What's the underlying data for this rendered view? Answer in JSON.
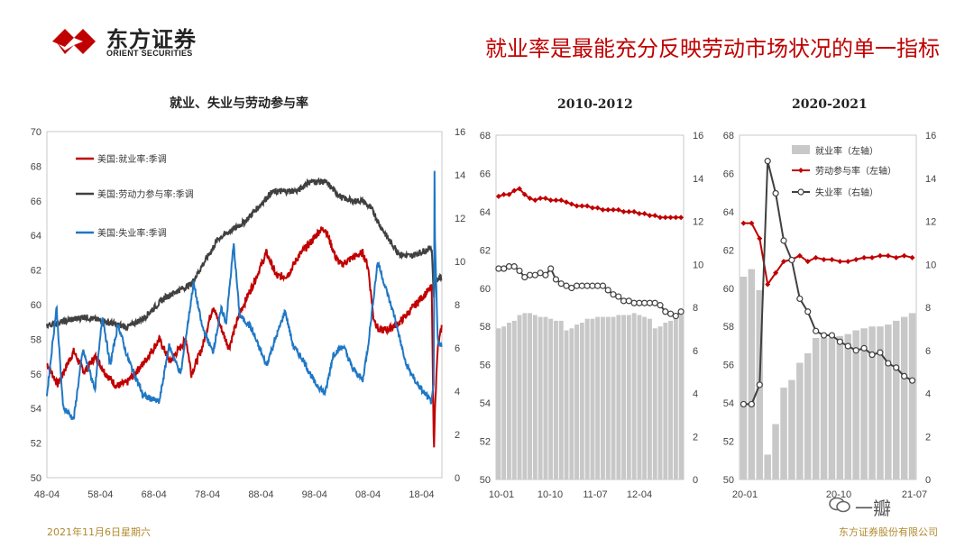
{
  "header": {
    "logo_cn": "东方证券",
    "logo_en": "ORIENT SECURITIES",
    "title": "就业率是最能充分反映劳动市场状况的单一指标"
  },
  "footer": {
    "date": "2021年11月6日星期六",
    "company": "东方证券股份有限公司",
    "watermark": "一瓣"
  },
  "colors": {
    "red": "#c00000",
    "gray": "#404040",
    "blue": "#1f77c4",
    "bar": "#c8c8c8",
    "title_red": "#c00000"
  },
  "chart_data": [
    {
      "type": "line",
      "title": "就业、失业与劳动参与率",
      "x_ticks": [
        "48-04",
        "58-04",
        "68-04",
        "78-04",
        "88-04",
        "98-04",
        "08-04",
        "18-04"
      ],
      "x_range": [
        1948.0,
        2021.8
      ],
      "y_left": {
        "ticks": [
          "50",
          "52",
          "54",
          "56",
          "58",
          "60",
          "62",
          "64",
          "66",
          "68",
          "70"
        ],
        "min": 50,
        "max": 70
      },
      "y_right": {
        "ticks": [
          "0",
          "2",
          "4",
          "6",
          "8",
          "10",
          "12",
          "14",
          "16"
        ],
        "min": 0,
        "max": 16
      },
      "series": [
        {
          "name": "美国:就业率:季调",
          "axis": "left",
          "color": "red",
          "x": [
            1948,
            1950,
            1953,
            1955,
            1957,
            1959,
            1961,
            1963,
            1966,
            1969,
            1971,
            1974,
            1975,
            1977,
            1979,
            1982,
            1984,
            1987,
            1989,
            1991,
            1993,
            1995,
            1997,
            1999,
            2000,
            2002,
            2003,
            2005,
            2007,
            2008,
            2009,
            2010,
            2012,
            2014,
            2016,
            2018,
            2019.9,
            2020.3,
            2020.5,
            2021.0,
            2021.8
          ],
          "y": [
            56.6,
            55.4,
            57.3,
            56.1,
            57.0,
            56.0,
            55.3,
            55.5,
            56.6,
            58.0,
            56.7,
            58.0,
            56.0,
            57.5,
            59.9,
            57.5,
            59.5,
            61.5,
            63.0,
            61.6,
            61.7,
            62.8,
            63.5,
            64.3,
            64.4,
            62.7,
            62.3,
            62.7,
            63.0,
            62.2,
            59.3,
            58.5,
            58.6,
            59.0,
            59.7,
            60.4,
            61.0,
            51.3,
            54.0,
            57.4,
            58.8
          ]
        },
        {
          "name": "美国:劳动力参与率:季调",
          "axis": "left",
          "color": "gray",
          "x": [
            1948,
            1955,
            1963,
            1966,
            1970,
            1975,
            1980,
            1985,
            1990,
            1995,
            1997,
            2000,
            2003,
            2005,
            2007,
            2009,
            2010,
            2012,
            2014,
            2016,
            2019.9,
            2020.3,
            2020.5,
            2021.8
          ],
          "y": [
            58.8,
            59.3,
            58.7,
            59.2,
            60.4,
            61.2,
            63.8,
            64.8,
            66.5,
            66.6,
            67.1,
            67.1,
            66.2,
            66.0,
            66.0,
            65.4,
            64.7,
            63.7,
            62.9,
            62.8,
            63.3,
            60.2,
            61.4,
            61.6
          ]
        },
        {
          "name": "美国:失业率:季调",
          "axis": "right",
          "color": "blue",
          "x": [
            1948,
            1949.8,
            1951,
            1953,
            1954.7,
            1957,
            1958.4,
            1959.8,
            1961.3,
            1963,
            1966,
            1969,
            1970.8,
            1973,
            1975.4,
            1977,
            1979,
            1980.6,
            1981.5,
            1982.9,
            1984,
            1986,
            1989,
            1992.5,
            1994,
            1996,
            1998,
            2000,
            2001.5,
            2003.4,
            2005,
            2007,
            2008,
            2009.8,
            2011,
            2013,
            2015,
            2017,
            2019.8,
            2020.3,
            2020.4,
            2020.5,
            2021.0,
            2021.8
          ],
          "y": [
            3.8,
            7.9,
            3.3,
            2.7,
            5.9,
            4.1,
            7.5,
            5.2,
            7.1,
            5.6,
            3.8,
            3.5,
            6.1,
            4.8,
            9.0,
            7.0,
            5.8,
            7.8,
            7.2,
            10.8,
            7.5,
            7.0,
            5.2,
            7.7,
            6.1,
            5.4,
            4.4,
            3.9,
            5.7,
            6.1,
            5.1,
            4.5,
            6.1,
            10.0,
            9.0,
            7.4,
            5.3,
            4.4,
            3.5,
            4.4,
            14.8,
            11.1,
            6.4,
            6.0
          ]
        }
      ]
    },
    {
      "type": "bar+line",
      "title": "2010-2012",
      "x_ticks": [
        "10-01",
        "10-10",
        "11-07",
        "12-04"
      ],
      "x_range": [
        2010.0,
        2013.0
      ],
      "y_left": {
        "ticks": [
          "50",
          "52",
          "54",
          "56",
          "58",
          "60",
          "62",
          "64",
          "66",
          "68"
        ],
        "min": 50,
        "max": 68
      },
      "y_right": {
        "ticks": [
          "0",
          "2",
          "4",
          "6",
          "8",
          "10",
          "12",
          "14",
          "16"
        ],
        "min": 0,
        "max": 16
      },
      "series": [
        {
          "name": "就业率",
          "kind": "bar",
          "axis": "left",
          "color": "bar",
          "values": [
            57.9,
            58.0,
            58.2,
            58.3,
            58.6,
            58.7,
            58.7,
            58.6,
            58.5,
            58.5,
            58.4,
            58.3,
            58.3,
            57.8,
            57.9,
            58.1,
            58.2,
            58.4,
            58.4,
            58.5,
            58.5,
            58.5,
            58.5,
            58.6,
            58.6,
            58.6,
            58.7,
            58.6,
            58.5,
            58.4,
            57.9,
            58.0,
            58.2,
            58.3,
            58.4,
            58.6
          ]
        },
        {
          "name": "劳动参与率",
          "kind": "line",
          "axis": "left",
          "color": "red",
          "values": [
            64.8,
            64.9,
            64.9,
            65.1,
            65.2,
            64.9,
            64.7,
            64.6,
            64.7,
            64.7,
            64.6,
            64.6,
            64.6,
            64.5,
            64.4,
            64.3,
            64.3,
            64.3,
            64.2,
            64.2,
            64.1,
            64.1,
            64.1,
            64.1,
            64.0,
            64.0,
            64.0,
            63.9,
            63.9,
            63.8,
            63.8,
            63.7,
            63.7,
            63.7,
            63.7,
            63.7
          ]
        },
        {
          "name": "失业率",
          "kind": "line",
          "axis": "right",
          "color": "gray",
          "values": [
            9.8,
            9.8,
            9.9,
            9.9,
            9.7,
            9.4,
            9.5,
            9.5,
            9.6,
            9.5,
            9.8,
            9.3,
            9.1,
            9.0,
            8.9,
            9.0,
            9.0,
            9.0,
            9.0,
            9.0,
            9.0,
            8.8,
            8.6,
            8.5,
            8.3,
            8.3,
            8.2,
            8.2,
            8.2,
            8.2,
            8.2,
            8.1,
            7.8,
            7.7,
            7.6,
            7.8
          ]
        }
      ]
    },
    {
      "type": "bar+line",
      "title": "2020-2021",
      "legend": [
        "就业率（左轴）",
        "劳动参与率（左轴）",
        "失业率（右轴）"
      ],
      "x_ticks": [
        "20-01",
        "20-10",
        "21-07"
      ],
      "x_range": [
        2020.0,
        2021.833
      ],
      "y_left": {
        "ticks": [
          "50",
          "52",
          "54",
          "56",
          "58",
          "60",
          "62",
          "64",
          "66",
          "68"
        ],
        "min": 50,
        "max": 68
      },
      "y_right": {
        "ticks": [
          "0",
          "2",
          "4",
          "6",
          "8",
          "10",
          "12",
          "14",
          "16"
        ],
        "min": 0,
        "max": 16
      },
      "series": [
        {
          "name": "就业率（左轴）",
          "kind": "bar",
          "axis": "left",
          "color": "bar",
          "values": [
            60.6,
            61.0,
            59.9,
            51.3,
            52.9,
            54.8,
            55.2,
            56.1,
            56.6,
            57.4,
            57.4,
            57.4,
            57.5,
            57.6,
            57.8,
            57.9,
            58.0,
            58.0,
            58.1,
            58.3,
            58.5,
            58.7
          ]
        },
        {
          "name": "劳动参与率（左轴）",
          "kind": "line",
          "axis": "left",
          "color": "red",
          "values": [
            63.4,
            63.4,
            62.6,
            60.2,
            60.8,
            61.4,
            61.5,
            61.7,
            61.4,
            61.6,
            61.5,
            61.5,
            61.4,
            61.4,
            61.5,
            61.6,
            61.6,
            61.7,
            61.7,
            61.6,
            61.7,
            61.6
          ]
        },
        {
          "name": "失业率（右轴）",
          "kind": "line",
          "axis": "right",
          "color": "gray",
          "values": [
            3.5,
            3.5,
            4.4,
            14.8,
            13.3,
            11.1,
            10.2,
            8.4,
            7.8,
            6.9,
            6.7,
            6.7,
            6.4,
            6.2,
            6.0,
            6.1,
            5.8,
            5.9,
            5.4,
            5.2,
            4.8,
            4.6
          ]
        }
      ]
    }
  ]
}
